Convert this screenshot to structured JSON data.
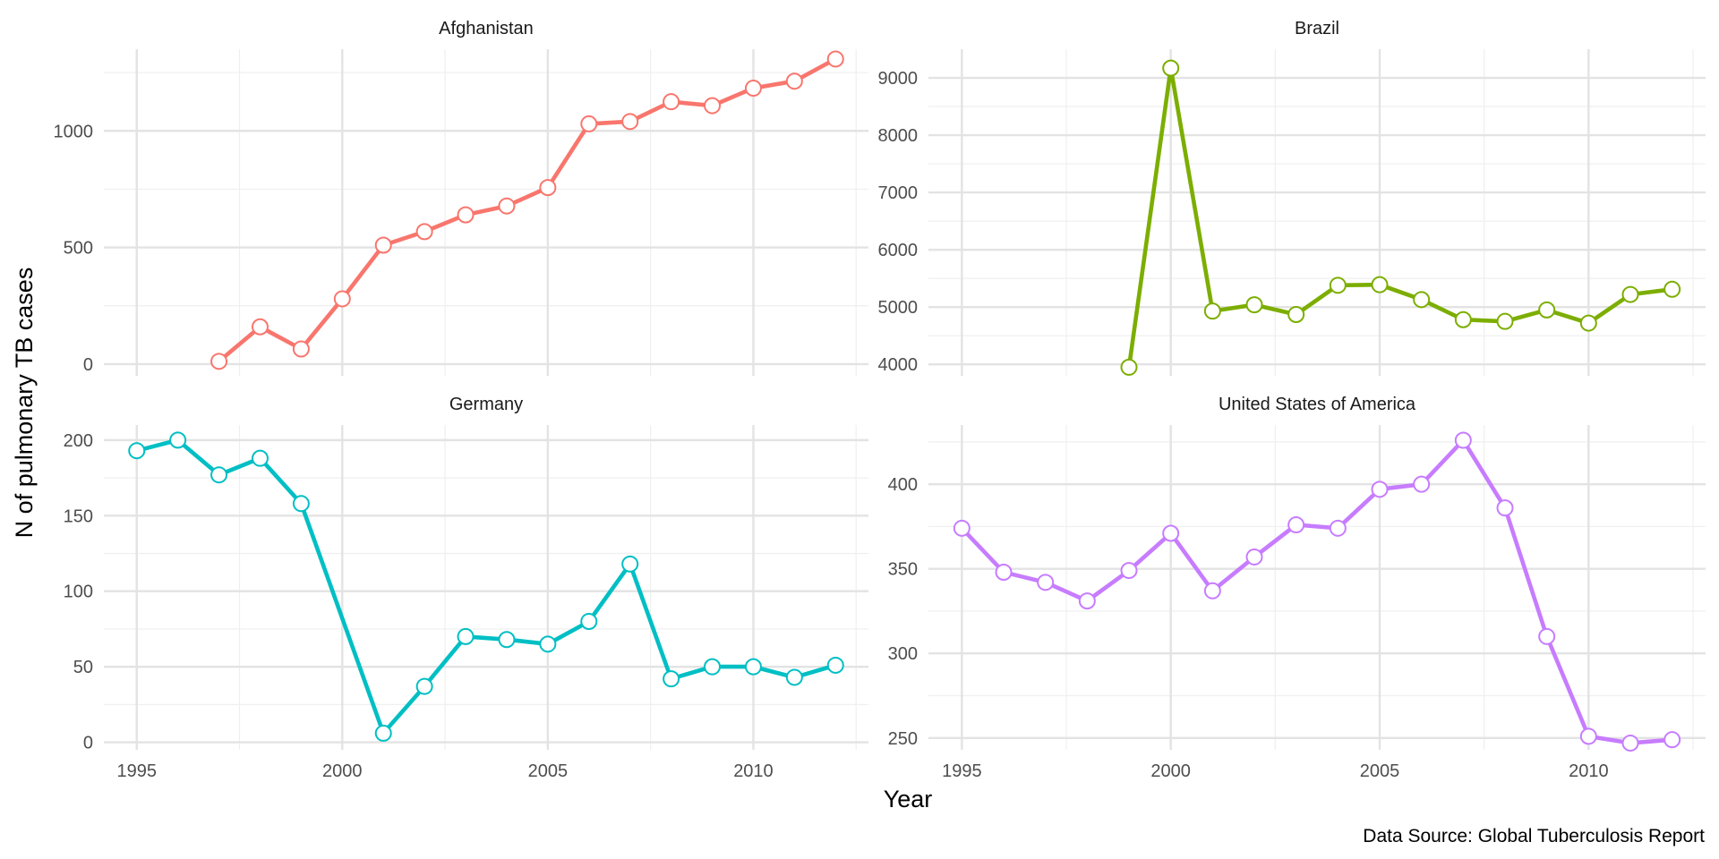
{
  "chart_data": {
    "type": "line",
    "xlabel": "Year",
    "ylabel": "N of pulmonary TB cases",
    "caption": "Data Source: Global Tuberculosis Report",
    "x_tick_labels": [
      "1995",
      "2000",
      "2005",
      "2010"
    ],
    "grid": true,
    "facets": [
      {
        "title": "Afghanistan",
        "color": "#F8766D",
        "y_tick_labels": [
          "0",
          "500",
          "1000"
        ],
        "ylim": [
          -50,
          1350
        ],
        "x": [
          1997,
          1998,
          1999,
          2000,
          2001,
          2002,
          2003,
          2004,
          2005,
          2006,
          2007,
          2008,
          2009,
          2010,
          2011,
          2012
        ],
        "values": [
          12,
          160,
          65,
          280,
          510,
          568,
          640,
          678,
          757,
          1030,
          1040,
          1125,
          1108,
          1183,
          1213,
          1308
        ]
      },
      {
        "title": "Brazil",
        "color": "#7CAE00",
        "y_tick_labels": [
          "4000",
          "5000",
          "6000",
          "7000",
          "8000",
          "9000"
        ],
        "ylim": [
          3800,
          9500
        ],
        "x": [
          1999,
          2000,
          2001,
          2002,
          2003,
          2004,
          2005,
          2006,
          2007,
          2008,
          2009,
          2010,
          2011,
          2012
        ],
        "values": [
          3950,
          9170,
          4930,
          5040,
          4870,
          5380,
          5390,
          5130,
          4780,
          4750,
          4950,
          4720,
          5220,
          5310
        ]
      },
      {
        "title": "Germany",
        "color": "#00BFC4",
        "y_tick_labels": [
          "0",
          "50",
          "100",
          "150",
          "200"
        ],
        "ylim": [
          -5,
          210
        ],
        "x": [
          1995,
          1996,
          1997,
          1998,
          1999,
          2001,
          2002,
          2003,
          2004,
          2005,
          2006,
          2007,
          2008,
          2009,
          2010,
          2011,
          2012
        ],
        "values": [
          193,
          200,
          177,
          188,
          158,
          6,
          37,
          70,
          68,
          65,
          80,
          118,
          42,
          50,
          50,
          43,
          51
        ]
      },
      {
        "title": "United States of America",
        "color": "#C77CFF",
        "y_tick_labels": [
          "250",
          "300",
          "350",
          "400"
        ],
        "ylim": [
          243,
          435
        ],
        "x": [
          1995,
          1996,
          1997,
          1998,
          1999,
          2000,
          2001,
          2002,
          2003,
          2004,
          2005,
          2006,
          2007,
          2008,
          2009,
          2010,
          2011,
          2012
        ],
        "values": [
          374,
          348,
          342,
          331,
          349,
          371,
          337,
          357,
          376,
          374,
          397,
          400,
          426,
          386,
          310,
          251,
          247,
          249
        ]
      }
    ]
  }
}
